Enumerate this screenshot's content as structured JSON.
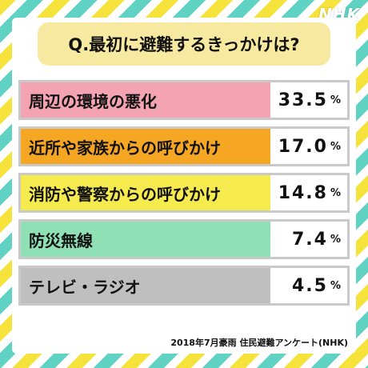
{
  "logo": "NHK",
  "colors": [
    "#f4a3b3",
    "#f5a623",
    "#f5ea4e",
    "#8fe0b5",
    "#bfbfbf"
  ],
  "chart_data": {
    "type": "bar",
    "title": "Q.最初に避難するきっかけは?",
    "categories": [
      "周辺の環境の悪化",
      "近所や家族からの呼びかけ",
      "消防や警察からの呼びかけ",
      "防災無線",
      "テレビ・ラジオ"
    ],
    "values": [
      33.5,
      17.0,
      14.8,
      7.4,
      4.5
    ],
    "value_labels": [
      "33.5",
      "17.0",
      "14.8",
      "7.4",
      "4.5"
    ],
    "unit": "%",
    "source": "2018年7月豪雨 住民避難アンケート(NHK)"
  }
}
